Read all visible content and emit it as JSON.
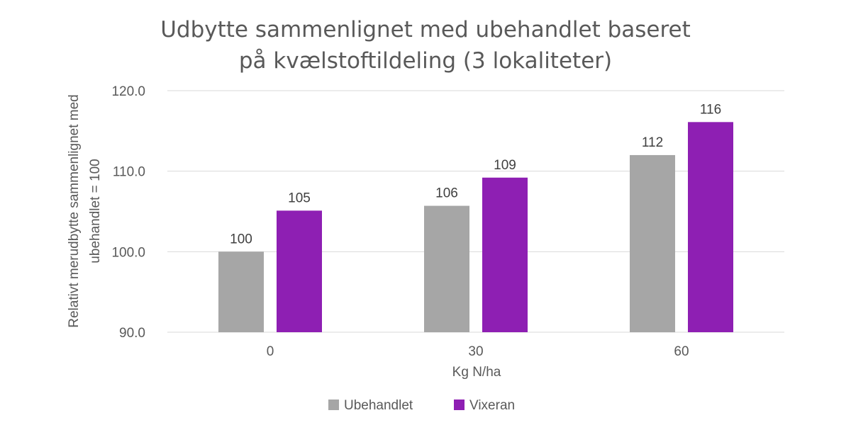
{
  "chart_data": {
    "type": "bar",
    "title_lines": [
      "Udbytte sammenlignet med ubehandlet baseret",
      "på kvælstoftildeling (3 lokaliteter)"
    ],
    "xlabel": "Kg N/ha",
    "ylabel_lines": [
      "Relativt merudbytte sammenlignet med",
      "ubehandlet = 100"
    ],
    "categories": [
      "0",
      "30",
      "60"
    ],
    "ylim": [
      90,
      120
    ],
    "yticks": [
      90,
      100,
      110,
      120
    ],
    "ytick_labels": [
      "90.0",
      "100.0",
      "110.0",
      "120.0"
    ],
    "grid": true,
    "legend_position": "bottom",
    "series": [
      {
        "name": "Ubehandlet",
        "color": "#a6a6a6",
        "values": [
          100,
          105.7,
          112
        ],
        "labels": [
          "100",
          "106",
          "112"
        ]
      },
      {
        "name": "Vixeran",
        "color": "#8e1fb3",
        "values": [
          105.1,
          109.2,
          116.1
        ],
        "labels": [
          "105",
          "109",
          "116"
        ]
      }
    ]
  }
}
